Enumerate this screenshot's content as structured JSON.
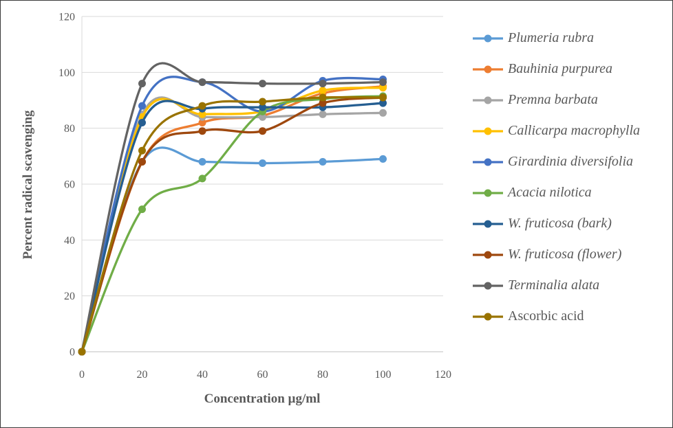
{
  "chart_data": {
    "type": "line",
    "title": "",
    "xlabel": "Concentration µg/ml",
    "ylabel": "Percent radical scavenging",
    "x": [
      0,
      20,
      40,
      60,
      80,
      100
    ],
    "x_ticks": [
      0,
      20,
      40,
      60,
      80,
      100,
      120
    ],
    "y_ticks": [
      0,
      20,
      40,
      60,
      80,
      100,
      120
    ],
    "xlim": [
      0,
      120
    ],
    "ylim": [
      0,
      120
    ],
    "grid": "horizontal",
    "line_style": "smooth",
    "marker": "circle",
    "legend_position": "right",
    "series": [
      {
        "name": "Plumeria rubra",
        "color": "#5B9BD5",
        "italic": true,
        "values": [
          0,
          68,
          68,
          67.5,
          68,
          69
        ]
      },
      {
        "name": "Bauhinia purpurea",
        "color": "#ED7D31",
        "italic": true,
        "values": [
          0,
          68,
          82,
          84.5,
          92.5,
          95
        ]
      },
      {
        "name": "Premna barbata",
        "color": "#A5A5A5",
        "italic": true,
        "values": [
          0,
          85,
          84,
          84,
          85,
          85.5
        ]
      },
      {
        "name": "Callicarpa macrophylla",
        "color": "#FFC000",
        "italic": true,
        "values": [
          0,
          84,
          85,
          86,
          93.5,
          94.5
        ]
      },
      {
        "name": "Girardinia diversifolia",
        "color": "#4472C4",
        "italic": true,
        "values": [
          0,
          88,
          96.5,
          86,
          97,
          97.5
        ]
      },
      {
        "name": "Acacia nilotica",
        "color": "#70AD47",
        "italic": true,
        "values": [
          0,
          51,
          62,
          86,
          90.5,
          91.5
        ]
      },
      {
        "name": "W. fruticosa (bark)",
        "color": "#255E91",
        "italic": true,
        "values": [
          0,
          82,
          87,
          87.5,
          87.5,
          89
        ]
      },
      {
        "name": "W. fruticosa (flower)",
        "color": "#9E480E",
        "italic": true,
        "values": [
          0,
          68,
          79,
          79,
          89,
          91
        ]
      },
      {
        "name": "Terminalia alata",
        "color": "#636363",
        "italic": true,
        "values": [
          0,
          96,
          96.5,
          96,
          96,
          96.5
        ]
      },
      {
        "name": "Ascorbic acid",
        "color": "#997300",
        "italic": false,
        "values": [
          0,
          72,
          88,
          89.5,
          91,
          91
        ]
      }
    ],
    "colors": {
      "axis_text": "#595959",
      "gridline": "#D9D9D9",
      "axis_line": "#BFBFBF",
      "background": "#FFFFFF"
    }
  }
}
